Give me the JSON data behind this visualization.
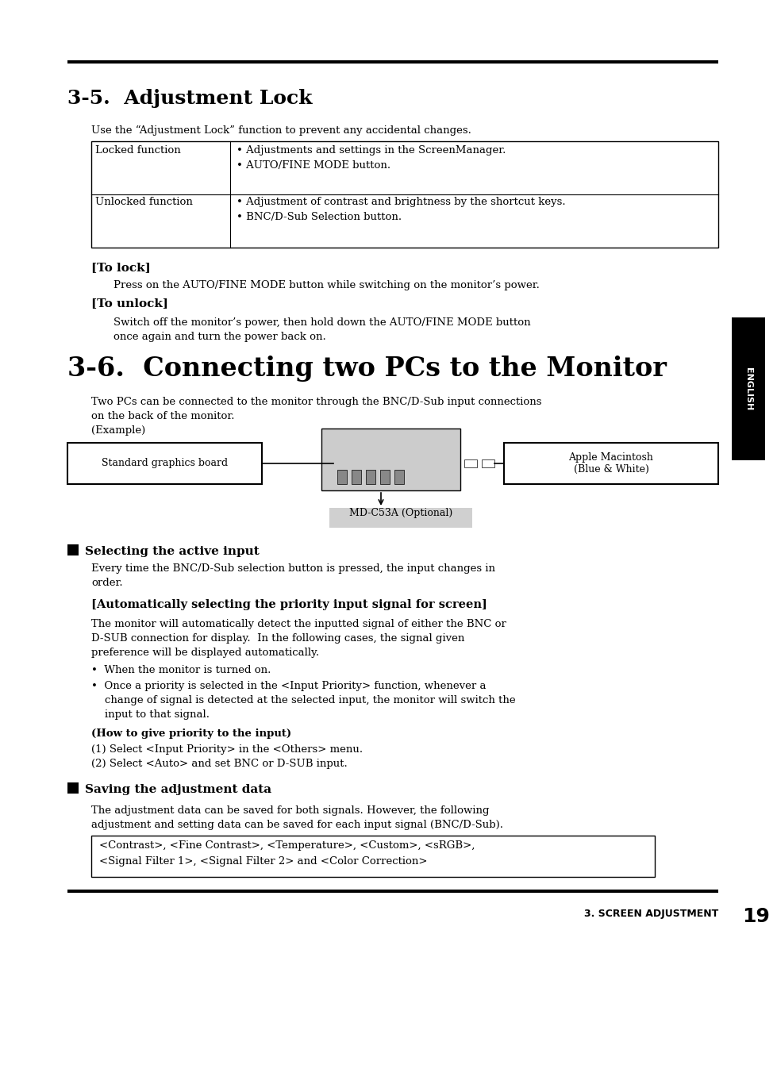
{
  "page_bg": "#ffffff",
  "section1_title": "3-5.  Adjustment Lock",
  "section1_intro": "Use the “Adjustment Lock” function to prevent any accidental changes.",
  "table_locked": "Locked function",
  "table_locked_r1": "• Adjustments and settings in the ScreenManager.",
  "table_locked_r2": "• AUTO/FINE MODE button.",
  "table_unlocked": "Unlocked function",
  "table_unlocked_r1": "• Adjustment of contrast and brightness by the shortcut keys.",
  "table_unlocked_r2": "• BNC/D-Sub Selection button.",
  "to_lock_header": "[To lock]",
  "to_lock_body": "Press on the AUTO/FINE MODE button while switching on the monitor’s power.",
  "to_unlock_header": "[To unlock]",
  "to_unlock_body1": "Switch off the monitor’s power, then hold down the AUTO/FINE MODE button",
  "to_unlock_body2": "once again and turn the power back on.",
  "section2_title": "3-6.  Connecting two PCs to the Monitor",
  "section2_intro1": "Two PCs can be connected to the monitor through the BNC/D-Sub input connections",
  "section2_intro2": "on the back of the monitor.",
  "example_label": "(Example)",
  "label_standard": "Standard graphics board",
  "label_md": "MD-C53A (Optional)",
  "label_apple": "Apple Macintosh\n(Blue & White)",
  "selecting_header": "Selecting the active input",
  "selecting_body1": "Every time the BNC/D-Sub selection button is pressed, the input changes in",
  "selecting_body2": "order.",
  "auto_header": "[Automatically selecting the priority input signal for screen]",
  "auto_body1": "The monitor will automatically detect the inputted signal of either the BNC or",
  "auto_body2": "D-SUB connection for display.  In the following cases, the signal given",
  "auto_body3": "preference will be displayed automatically.",
  "bullet_when": "•  When the monitor is turned on.",
  "bullet_once1": "•  Once a priority is selected in the <Input Priority> function, whenever a",
  "bullet_once2": "    change of signal is detected at the selected input, the monitor will switch the",
  "bullet_once3": "    input to that signal.",
  "how_header": "(How to give priority to the input)",
  "how_step1": "(1) Select <Input Priority> in the <Others> menu.",
  "how_step2": "(2) Select <Auto> and set BNC or D-SUB input.",
  "saving_header": "Saving the adjustment data",
  "saving_body1": "The adjustment data can be saved for both signals. However, the following",
  "saving_body2": "adjustment and setting data can be saved for each input signal (BNC/D-Sub).",
  "saving_box1": "<Contrast>, <Fine Contrast>, <Temperature>, <Custom>, <sRGB>,",
  "saving_box2": "<Signal Filter 1>, <Signal Filter 2> and <Color Correction>",
  "footer_text": "3. SCREEN ADJUSTMENT",
  "footer_page": "19",
  "english_tab": "ENGLISH"
}
